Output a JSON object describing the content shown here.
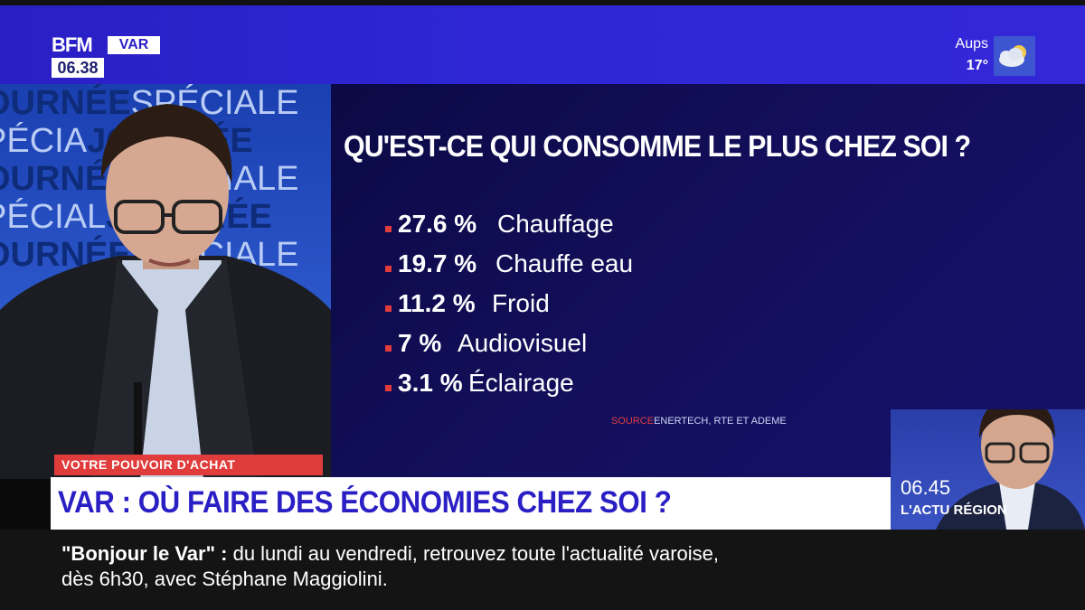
{
  "channel": {
    "logo_main": "BFM",
    "logo_region": "VAR",
    "clock": "06.38"
  },
  "weather": {
    "city": "Aups",
    "temperature": "17°",
    "icon": "cloudy-sun-icon"
  },
  "studio_backdrop": {
    "lines": [
      {
        "a": "OURNÉE",
        "b": "SPÉCIALE"
      },
      {
        "a": "PÉCIA",
        "b": "JOURNÉE"
      },
      {
        "a": "OURNÉE",
        "b": "SPÉCIALE"
      },
      {
        "a": "PÉCIAL",
        "b": "JOURNÉE"
      },
      {
        "a": "OURNÉE",
        "b": "SPÉCIALE"
      }
    ]
  },
  "graphic": {
    "title": "QU'EST-CE QUI CONSOMME LE PLUS CHEZ SOI ?",
    "stats": [
      {
        "value": "27.6 %",
        "label": "Chauffage"
      },
      {
        "value": "19.7 %",
        "label": "Chauffe eau"
      },
      {
        "value": "11.2 %",
        "label": "Froid"
      },
      {
        "value": "7 %",
        "label": "Audiovisuel"
      },
      {
        "value": "3.1 %",
        "label": "Éclairage"
      }
    ],
    "source_label": "SOURCE",
    "source_text": "ENERTECH, RTE ET ADEME",
    "bullet_color": "#e03c3c"
  },
  "pip": {
    "time": "06.45",
    "label": "L'ACTU RÉGION"
  },
  "lower_third": {
    "tag": "VOTRE POUVOIR D'ACHAT",
    "headline": "VAR : OÙ FAIRE DES ÉCONOMIES CHEZ SOI ?"
  },
  "ticker": {
    "show": "\"Bonjour le Var\" :",
    "line1": "du lundi au vendredi, retrouvez toute l'actualité varoise,",
    "line2": "dès 6h30, avec Stéphane Maggiolini."
  },
  "colors": {
    "brand_blue": "#2a1fc4",
    "accent_red": "#e03c3c",
    "graphic_bg": "#130f5c"
  }
}
